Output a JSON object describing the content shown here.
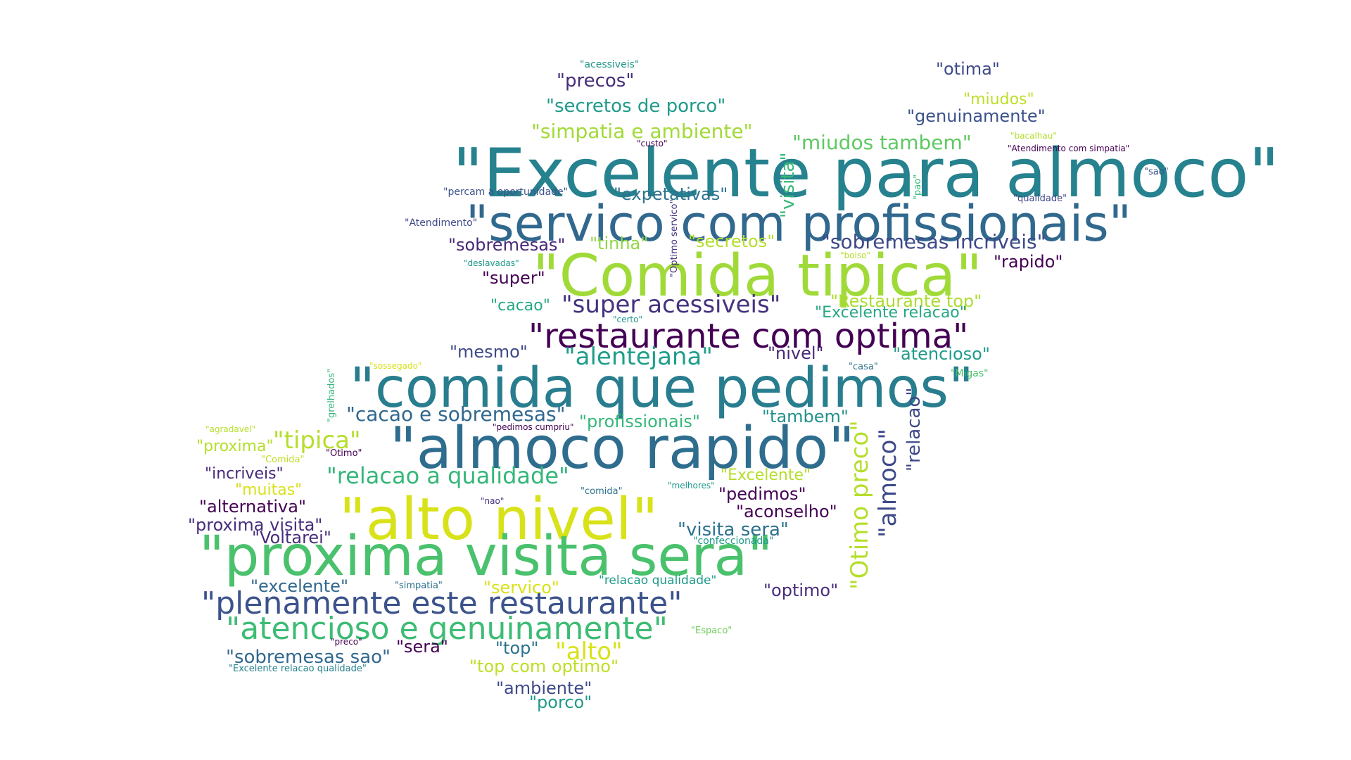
{
  "palette": {
    "background": "#ffffff",
    "colors": [
      "#440154",
      "#482878",
      "#3e4989",
      "#31688e",
      "#26828e",
      "#1f9e89",
      "#35b779",
      "#6ece58",
      "#b5de2b",
      "#fde725"
    ]
  },
  "words": [
    {
      "text": "\"Excelente para almoco\"",
      "size": 95,
      "color": "#26828e"
    },
    {
      "text": "\"servico com profissionais\"",
      "size": 70,
      "color": "#31688e"
    },
    {
      "text": "\"Comida tipica\"",
      "size": 82,
      "color": "#a0da39"
    },
    {
      "text": "\"restaurante com optima\"",
      "size": 48,
      "color": "#440154"
    },
    {
      "text": "\"comida que pedimos\"",
      "size": 78,
      "color": "#287d8e"
    },
    {
      "text": "\"almoco rapido\"",
      "size": 82,
      "color": "#2e6d8e"
    },
    {
      "text": "\"alto nivel\"",
      "size": 82,
      "color": "#d8e219"
    },
    {
      "text": "\"proxima visita sera\"",
      "size": 78,
      "color": "#4ac16d"
    },
    {
      "text": "\"plenamente este restaurante\"",
      "size": 44,
      "color": "#3b528b"
    },
    {
      "text": "\"atencioso e genuinamente\"",
      "size": 44,
      "color": "#3dbc74"
    },
    {
      "text": "\"acessiveis\"",
      "size": 14,
      "color": "#1f988b"
    },
    {
      "text": "\"precos\"",
      "size": 26,
      "color": "#472d7b"
    },
    {
      "text": "\"otima\"",
      "size": 24,
      "color": "#3e4989"
    },
    {
      "text": "\"miudos\"",
      "size": 22,
      "color": "#bddf26"
    },
    {
      "text": "\"genuinamente\"",
      "size": 24,
      "color": "#3b528b"
    },
    {
      "text": "\"secretos de porco\"",
      "size": 26,
      "color": "#1f9a8a"
    },
    {
      "text": "\"simpatia e ambiente\"",
      "size": 28,
      "color": "#a2da37"
    },
    {
      "text": "\"miudos tambem\"",
      "size": 28,
      "color": "#5ec962"
    },
    {
      "text": "\"bacalhau\"",
      "size": 12,
      "color": "#b5de2b"
    },
    {
      "text": "\"custo\"",
      "size": 12,
      "color": "#440154"
    },
    {
      "text": "\"Atendimento com simpatia\"",
      "size": 12,
      "color": "#440154"
    },
    {
      "text": "\"sao\"",
      "size": 13,
      "color": "#3b528b"
    },
    {
      "text": "\"percam a oportunidade\"",
      "size": 14,
      "color": "#3b528b"
    },
    {
      "text": "\"expetativas\"",
      "size": 24,
      "color": "#2c728e"
    },
    {
      "text": "\"qualidade\"",
      "size": 13,
      "color": "#3e4989"
    },
    {
      "text": "\"Atendimento\"",
      "size": 14,
      "color": "#3e4989"
    },
    {
      "text": "\"sobremesas\"",
      "size": 24,
      "color": "#482878"
    },
    {
      "text": "\"tinha\"",
      "size": 24,
      "color": "#8fd744"
    },
    {
      "text": "\"secretos\"",
      "size": 24,
      "color": "#b5de2b"
    },
    {
      "text": "\"sobremesas incriveis\"",
      "size": 28,
      "color": "#3e4989"
    },
    {
      "text": "\"deslavadas\"",
      "size": 12,
      "color": "#1f9a8a"
    },
    {
      "text": "\"boiso\"",
      "size": 12,
      "color": "#b5de2b"
    },
    {
      "text": "\"rapido\"",
      "size": 24,
      "color": "#440154"
    },
    {
      "text": "\"super\"",
      "size": 24,
      "color": "#440154"
    },
    {
      "text": "\"cacao\"",
      "size": 22,
      "color": "#26a784"
    },
    {
      "text": "\"super acessiveis\"",
      "size": 34,
      "color": "#46327e"
    },
    {
      "text": "\"Restaurante top\"",
      "size": 24,
      "color": "#addc30"
    },
    {
      "text": "\"Excelente relacao\"",
      "size": 22,
      "color": "#26a784"
    },
    {
      "text": "\"certo\"",
      "size": 12,
      "color": "#1f988b"
    },
    {
      "text": "\"mesmo\"",
      "size": 24,
      "color": "#3e4989"
    },
    {
      "text": "\"alentejana\"",
      "size": 34,
      "color": "#1f9e89"
    },
    {
      "text": "\"nivel\"",
      "size": 24,
      "color": "#482878"
    },
    {
      "text": "\"atencioso\"",
      "size": 24,
      "color": "#1f9a8a"
    },
    {
      "text": "\"sossegado\"",
      "size": 12,
      "color": "#d8e219"
    },
    {
      "text": "\"casa\"",
      "size": 13,
      "color": "#2c728e"
    },
    {
      "text": "\"Migas\"",
      "size": 14,
      "color": "#4ac16d"
    },
    {
      "text": "\"cacao e sobremesas\"",
      "size": 28,
      "color": "#31688e"
    },
    {
      "text": "\"profissionais\"",
      "size": 24,
      "color": "#35b779"
    },
    {
      "text": "\"tambem\"",
      "size": 24,
      "color": "#21918c"
    },
    {
      "text": "\"agradavel\"",
      "size": 12,
      "color": "#b5de2b"
    },
    {
      "text": "\"pedimos cumpriu\"",
      "size": 12,
      "color": "#440154"
    },
    {
      "text": "\"proxima\"",
      "size": 22,
      "color": "#b5de2b"
    },
    {
      "text": "\"tipica\"",
      "size": 34,
      "color": "#b5de2b"
    },
    {
      "text": "\"Comida\"",
      "size": 13,
      "color": "#bddf26"
    },
    {
      "text": "\"Otimo\"",
      "size": 13,
      "color": "#440154"
    },
    {
      "text": "\"incriveis\"",
      "size": 22,
      "color": "#482878"
    },
    {
      "text": "\"relacao a qualidade\"",
      "size": 32,
      "color": "#35b779"
    },
    {
      "text": "\"Excelente\"",
      "size": 22,
      "color": "#b5de2b"
    },
    {
      "text": "\"muitas\"",
      "size": 22,
      "color": "#d8e219"
    },
    {
      "text": "\"melhores\"",
      "size": 12,
      "color": "#1f9a8a"
    },
    {
      "text": "\"comida\"",
      "size": 13,
      "color": "#2c728e"
    },
    {
      "text": "\"pedimos\"",
      "size": 24,
      "color": "#440154"
    },
    {
      "text": "\"alternativa\"",
      "size": 24,
      "color": "#440154"
    },
    {
      "text": "\"nao\"",
      "size": 12,
      "color": "#46327e"
    },
    {
      "text": "\"aconselho\"",
      "size": 24,
      "color": "#440154"
    },
    {
      "text": "\"proxima visita\"",
      "size": 24,
      "color": "#472d7b"
    },
    {
      "text": "\"visita sera\"",
      "size": 26,
      "color": "#2c728e"
    },
    {
      "text": "\"Voltarei\"",
      "size": 24,
      "color": "#472d7b"
    },
    {
      "text": "\"confeccionada\"",
      "size": 14,
      "color": "#1f9a8a"
    },
    {
      "text": "\"excelente\"",
      "size": 24,
      "color": "#31688e"
    },
    {
      "text": "\"simpatia\"",
      "size": 13,
      "color": "#2c728e"
    },
    {
      "text": "\"servico\"",
      "size": 24,
      "color": "#d8e219"
    },
    {
      "text": "\"relacao qualidade\"",
      "size": 17,
      "color": "#1f9a8a"
    },
    {
      "text": "\"optimo\"",
      "size": 24,
      "color": "#472d7b"
    },
    {
      "text": "\"Espaco\"",
      "size": 13,
      "color": "#6ece58"
    },
    {
      "text": "\"preco\"",
      "size": 12,
      "color": "#440154"
    },
    {
      "text": "\"sera\"",
      "size": 24,
      "color": "#440154"
    },
    {
      "text": "\"top\"",
      "size": 24,
      "color": "#2c728e"
    },
    {
      "text": "\"alto\"",
      "size": 34,
      "color": "#d8e219"
    },
    {
      "text": "\"sobremesas sao\"",
      "size": 26,
      "color": "#31688e"
    },
    {
      "text": "\"Excelente relacao qualidade\"",
      "size": 13,
      "color": "#26828e"
    },
    {
      "text": "\"top com optimo\"",
      "size": 24,
      "color": "#bddf26"
    },
    {
      "text": "\"ambiente\"",
      "size": 24,
      "color": "#3e4989"
    },
    {
      "text": "\"porco\"",
      "size": 24,
      "color": "#1f9a8a"
    },
    {
      "text": "\"visita\"",
      "size": 26,
      "color": "#35b779"
    },
    {
      "text": "\"Optimo servico\"",
      "size": 13,
      "color": "#46327e"
    },
    {
      "text": "\"pao\"",
      "size": 13,
      "color": "#35b779"
    },
    {
      "text": "\"Otimo preco\"",
      "size": 34,
      "color": "#b5de2b"
    },
    {
      "text": "\"almoco\"",
      "size": 34,
      "color": "#3e4989"
    },
    {
      "text": "\"relacao\"",
      "size": 26,
      "color": "#3e4989"
    },
    {
      "text": "\"grelhados\"",
      "size": 13,
      "color": "#35b779"
    }
  ]
}
